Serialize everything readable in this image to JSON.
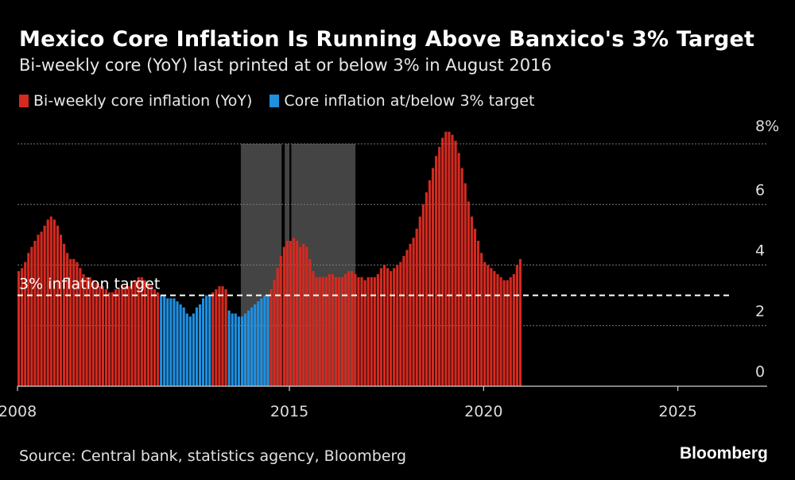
{
  "header": {
    "title": "Mexico Core Inflation Is Running Above Banxico's 3% Target",
    "subtitle": "Bi-weekly core (YoY) last printed at or below 3% in August 2016"
  },
  "footer": {
    "source": "Source: Central bank, statistics agency, Bloomberg",
    "logo": "Bloomberg"
  },
  "colors": {
    "above": "#d42a20",
    "below": "#1f8fe0",
    "shade": "#444444",
    "grid": "#7a7a7a",
    "target": "#ffffff"
  },
  "chart_data": {
    "type": "bar",
    "title": "Mexico Core Inflation Is Running Above Banxico's 3% Target",
    "subtitle": "Bi-weekly core (YoY) last printed at or below 3% in August 2016",
    "legend": [
      {
        "label": "Bi-weekly core inflation (YoY)",
        "color": "#d42a20"
      },
      {
        "label": "Core inflation at/below 3% target",
        "color": "#1f8fe0"
      }
    ],
    "xlim": [
      2008,
      2027.3
    ],
    "ylim": [
      0,
      8
    ],
    "y_ticks": [
      0,
      2,
      4,
      6,
      8
    ],
    "y_tick_labels": [
      "0",
      "2",
      "4",
      "6",
      "8%"
    ],
    "x_ticks": [
      2008,
      2015,
      2020,
      2025
    ],
    "x_tick_labels": [
      "2008",
      "2015",
      "2020",
      "2025"
    ],
    "target": {
      "value": 3,
      "label": "3% inflation target"
    },
    "shaded_periods": [
      [
        2013.75,
        2014.8
      ],
      [
        2014.88,
        2015.0
      ],
      [
        2015.05,
        2016.7
      ]
    ],
    "series": [
      {
        "name": "Bi-weekly core inflation (YoY)",
        "start": 2008.0,
        "step": 0.0833,
        "values": [
          3.8,
          3.9,
          4.1,
          4.4,
          4.6,
          4.8,
          5.0,
          5.1,
          5.3,
          5.5,
          5.6,
          5.5,
          5.3,
          5.0,
          4.7,
          4.4,
          4.2,
          4.2,
          4.1,
          3.9,
          3.7,
          3.6,
          3.6,
          3.5,
          3.4,
          3.3,
          3.3,
          3.2,
          3.1,
          3.1,
          3.2,
          3.2,
          3.3,
          3.3,
          3.3,
          3.4,
          3.5,
          3.6,
          3.6,
          3.5,
          3.4,
          3.3,
          3.2,
          3.1,
          3.0,
          3.0,
          2.9,
          2.9,
          2.9,
          2.8,
          2.7,
          2.6,
          2.4,
          2.3,
          2.4,
          2.6,
          2.7,
          2.9,
          3.0,
          3.0,
          3.1,
          3.2,
          3.3,
          3.3,
          3.2,
          2.5,
          2.4,
          2.4,
          2.3,
          2.3,
          2.4,
          2.5,
          2.6,
          2.7,
          2.8,
          2.9,
          3.0,
          3.0,
          3.2,
          3.5,
          3.9,
          4.3,
          4.6,
          4.8,
          4.8,
          4.9,
          4.8,
          4.6,
          4.7,
          4.6,
          4.2,
          3.8,
          3.6,
          3.6,
          3.6,
          3.6,
          3.7,
          3.7,
          3.6,
          3.6,
          3.6,
          3.7,
          3.8,
          3.8,
          3.7,
          3.6,
          3.6,
          3.5,
          3.6,
          3.6,
          3.6,
          3.7,
          3.9,
          4.0,
          3.9,
          3.8,
          3.9,
          4.0,
          4.1,
          4.3,
          4.5,
          4.7,
          4.9,
          5.2,
          5.6,
          6.0,
          6.4,
          6.8,
          7.2,
          7.6,
          7.9,
          8.2,
          8.4,
          8.4,
          8.3,
          8.1,
          7.7,
          7.2,
          6.7,
          6.1,
          5.6,
          5.2,
          4.8,
          4.4,
          4.1,
          4.0,
          3.9,
          3.8,
          3.7,
          3.6,
          3.5,
          3.5,
          3.6,
          3.7,
          4.0,
          4.2
        ]
      }
    ]
  }
}
